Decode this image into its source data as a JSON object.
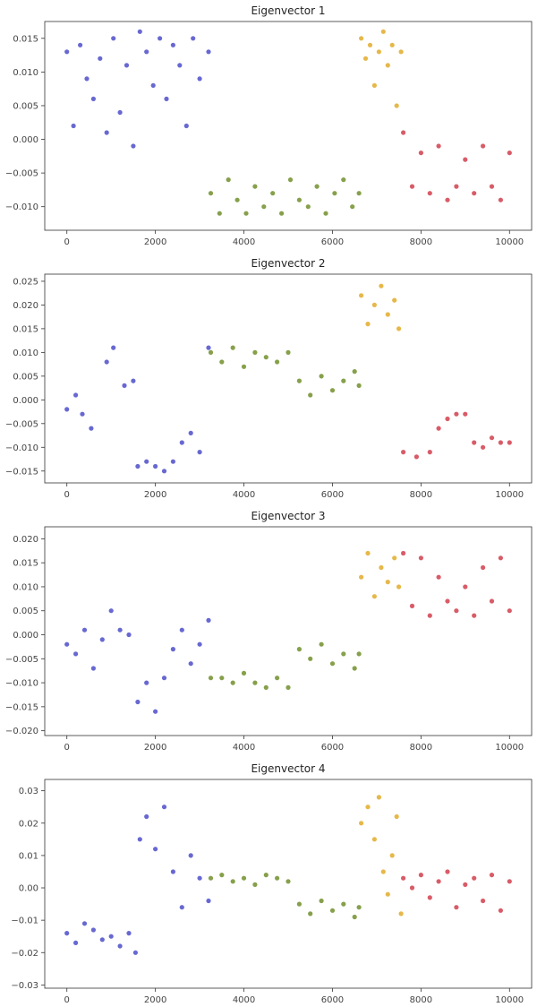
{
  "colors": {
    "cluster_1": "#6868d2",
    "cluster_2": "#86a04b",
    "cluster_3": "#e6b84a",
    "cluster_4": "#d85c68"
  },
  "chart_data": [
    {
      "type": "scatter",
      "title": "Eigenvector 1",
      "xlim": [
        -500,
        10500
      ],
      "ylim": [
        -0.0135,
        0.0175
      ],
      "xticks": [
        0,
        2000,
        4000,
        6000,
        8000,
        10000
      ],
      "xtick_labels": [
        "0",
        "2000",
        "4000",
        "6000",
        "8000",
        "10000"
      ],
      "yticks": [
        -0.01,
        -0.005,
        0.0,
        0.005,
        0.01,
        0.015
      ],
      "ytick_labels": [
        "−0.010",
        "−0.005",
        "0.000",
        "0.005",
        "0.010",
        "0.015"
      ],
      "series": [
        {
          "color_key": "cluster_1",
          "x": [
            0,
            150,
            300,
            450,
            600,
            750,
            900,
            1050,
            1200,
            1350,
            1500,
            1650,
            1800,
            1950,
            2100,
            2250,
            2400,
            2550,
            2700,
            2850,
            3000,
            3200
          ],
          "y": [
            0.013,
            0.002,
            0.014,
            0.009,
            0.006,
            0.012,
            0.001,
            0.015,
            0.004,
            0.011,
            -0.001,
            0.016,
            0.013,
            0.008,
            0.015,
            0.006,
            0.014,
            0.011,
            0.002,
            0.015,
            0.009,
            0.013
          ]
        },
        {
          "color_key": "cluster_2",
          "x": [
            3250,
            3450,
            3650,
            3850,
            4050,
            4250,
            4450,
            4650,
            4850,
            5050,
            5250,
            5450,
            5650,
            5850,
            6050,
            6250,
            6450,
            6600
          ],
          "y": [
            -0.008,
            -0.011,
            -0.006,
            -0.009,
            -0.011,
            -0.007,
            -0.01,
            -0.008,
            -0.011,
            -0.006,
            -0.009,
            -0.01,
            -0.007,
            -0.011,
            -0.008,
            -0.006,
            -0.01,
            -0.008
          ]
        },
        {
          "color_key": "cluster_3",
          "x": [
            6650,
            6750,
            6850,
            6950,
            7050,
            7150,
            7250,
            7350,
            7450,
            7550
          ],
          "y": [
            0.015,
            0.012,
            0.014,
            0.008,
            0.013,
            0.016,
            0.011,
            0.014,
            0.005,
            0.013
          ]
        },
        {
          "color_key": "cluster_4",
          "x": [
            7600,
            7800,
            8000,
            8200,
            8400,
            8600,
            8800,
            9000,
            9200,
            9400,
            9600,
            9800,
            10000
          ],
          "y": [
            0.001,
            -0.007,
            -0.002,
            -0.008,
            -0.001,
            -0.009,
            -0.007,
            -0.003,
            -0.008,
            -0.001,
            -0.007,
            -0.009,
            -0.002
          ]
        }
      ]
    },
    {
      "type": "scatter",
      "title": "Eigenvector 2",
      "xlim": [
        -500,
        10500
      ],
      "ylim": [
        -0.0175,
        0.0265
      ],
      "xticks": [
        0,
        2000,
        4000,
        6000,
        8000,
        10000
      ],
      "xtick_labels": [
        "0",
        "2000",
        "4000",
        "6000",
        "8000",
        "10000"
      ],
      "yticks": [
        -0.015,
        -0.01,
        -0.005,
        0.0,
        0.005,
        0.01,
        0.015,
        0.02,
        0.025
      ],
      "ytick_labels": [
        "−0.015",
        "−0.010",
        "−0.005",
        "0.000",
        "0.005",
        "0.010",
        "0.015",
        "0.020",
        "0.025"
      ],
      "series": [
        {
          "color_key": "cluster_1",
          "x": [
            0,
            200,
            350,
            550,
            900,
            1050,
            1300,
            1500,
            1600,
            1800,
            2000,
            2200,
            2400,
            2600,
            2800,
            3000,
            3200
          ],
          "y": [
            -0.002,
            0.001,
            -0.003,
            -0.006,
            0.008,
            0.011,
            0.003,
            0.004,
            -0.014,
            -0.013,
            -0.014,
            -0.015,
            -0.013,
            -0.009,
            -0.007,
            -0.011,
            0.011
          ]
        },
        {
          "color_key": "cluster_2",
          "x": [
            3250,
            3500,
            3750,
            4000,
            4250,
            4500,
            4750,
            5000,
            5250,
            5500,
            5750,
            6000,
            6250,
            6500,
            6600
          ],
          "y": [
            0.01,
            0.008,
            0.011,
            0.007,
            0.01,
            0.009,
            0.008,
            0.01,
            0.004,
            0.001,
            0.005,
            0.002,
            0.004,
            0.006,
            0.003
          ]
        },
        {
          "color_key": "cluster_3",
          "x": [
            6650,
            6800,
            6950,
            7100,
            7250,
            7400,
            7500
          ],
          "y": [
            0.022,
            0.016,
            0.02,
            0.024,
            0.018,
            0.021,
            0.015
          ]
        },
        {
          "color_key": "cluster_4",
          "x": [
            7600,
            7900,
            8200,
            8400,
            8600,
            8800,
            9000,
            9200,
            9400,
            9600,
            9800,
            10000
          ],
          "y": [
            -0.011,
            -0.012,
            -0.011,
            -0.006,
            -0.004,
            -0.003,
            -0.003,
            -0.009,
            -0.01,
            -0.008,
            -0.009,
            -0.009
          ]
        }
      ]
    },
    {
      "type": "scatter",
      "title": "Eigenvector 3",
      "xlim": [
        -500,
        10500
      ],
      "ylim": [
        -0.021,
        0.0225
      ],
      "xticks": [
        0,
        2000,
        4000,
        6000,
        8000,
        10000
      ],
      "xtick_labels": [
        "0",
        "2000",
        "4000",
        "6000",
        "8000",
        "10000"
      ],
      "yticks": [
        -0.02,
        -0.015,
        -0.01,
        -0.005,
        0.0,
        0.005,
        0.01,
        0.015,
        0.02
      ],
      "ytick_labels": [
        "−0.020",
        "−0.015",
        "−0.010",
        "−0.005",
        "0.000",
        "0.005",
        "0.010",
        "0.015",
        "0.020"
      ],
      "series": [
        {
          "color_key": "cluster_1",
          "x": [
            0,
            200,
            400,
            600,
            800,
            1000,
            1200,
            1400,
            1600,
            1800,
            2000,
            2200,
            2400,
            2600,
            2800,
            3000,
            3200
          ],
          "y": [
            -0.002,
            -0.004,
            0.001,
            -0.007,
            -0.001,
            0.005,
            0.001,
            0.0,
            -0.014,
            -0.01,
            -0.016,
            -0.009,
            -0.003,
            0.001,
            -0.006,
            -0.002,
            0.003
          ]
        },
        {
          "color_key": "cluster_2",
          "x": [
            3250,
            3500,
            3750,
            4000,
            4250,
            4500,
            4750,
            5000,
            5250,
            5500,
            5750,
            6000,
            6250,
            6500,
            6600
          ],
          "y": [
            -0.009,
            -0.009,
            -0.01,
            -0.008,
            -0.01,
            -0.011,
            -0.009,
            -0.011,
            -0.003,
            -0.005,
            -0.002,
            -0.006,
            -0.004,
            -0.007,
            -0.004
          ]
        },
        {
          "color_key": "cluster_3",
          "x": [
            6650,
            6800,
            6950,
            7100,
            7250,
            7400,
            7500
          ],
          "y": [
            0.012,
            0.017,
            0.008,
            0.014,
            0.011,
            0.016,
            0.01
          ]
        },
        {
          "color_key": "cluster_4",
          "x": [
            7600,
            7800,
            8000,
            8200,
            8400,
            8600,
            8800,
            9000,
            9200,
            9400,
            9600,
            9800,
            10000
          ],
          "y": [
            0.017,
            0.006,
            0.016,
            0.004,
            0.012,
            0.007,
            0.005,
            0.01,
            0.004,
            0.014,
            0.007,
            0.016,
            0.005
          ]
        }
      ]
    },
    {
      "type": "scatter",
      "title": "Eigenvector 4",
      "xlim": [
        -500,
        10500
      ],
      "ylim": [
        -0.031,
        0.0335
      ],
      "xticks": [
        0,
        2000,
        4000,
        6000,
        8000,
        10000
      ],
      "xtick_labels": [
        "0",
        "2000",
        "4000",
        "6000",
        "8000",
        "10000"
      ],
      "yticks": [
        -0.03,
        -0.02,
        -0.01,
        0.0,
        0.01,
        0.02,
        0.03
      ],
      "ytick_labels": [
        "−0.03",
        "−0.02",
        "−0.01",
        "0.00",
        "0.01",
        "0.02",
        "0.03"
      ],
      "series": [
        {
          "color_key": "cluster_1",
          "x": [
            0,
            200,
            400,
            600,
            800,
            1000,
            1200,
            1400,
            1550,
            1650,
            1800,
            2000,
            2200,
            2400,
            2600,
            2800,
            3000,
            3200
          ],
          "y": [
            -0.014,
            -0.017,
            -0.011,
            -0.013,
            -0.016,
            -0.015,
            -0.018,
            -0.014,
            -0.02,
            0.015,
            0.022,
            0.012,
            0.025,
            0.005,
            -0.006,
            0.01,
            0.003,
            -0.004
          ]
        },
        {
          "color_key": "cluster_2",
          "x": [
            3250,
            3500,
            3750,
            4000,
            4250,
            4500,
            4750,
            5000,
            5250,
            5500,
            5750,
            6000,
            6250,
            6500,
            6600
          ],
          "y": [
            0.003,
            0.004,
            0.002,
            0.003,
            0.001,
            0.004,
            0.003,
            0.002,
            -0.005,
            -0.008,
            -0.004,
            -0.007,
            -0.005,
            -0.009,
            -0.006
          ]
        },
        {
          "color_key": "cluster_3",
          "x": [
            6650,
            6800,
            6950,
            7050,
            7150,
            7250,
            7350,
            7450,
            7550
          ],
          "y": [
            0.02,
            0.025,
            0.015,
            0.028,
            0.005,
            -0.002,
            0.01,
            0.022,
            -0.008
          ]
        },
        {
          "color_key": "cluster_4",
          "x": [
            7600,
            7800,
            8000,
            8200,
            8400,
            8600,
            8800,
            9000,
            9200,
            9400,
            9600,
            9800,
            10000
          ],
          "y": [
            0.003,
            0.0,
            0.004,
            -0.003,
            0.002,
            0.005,
            -0.006,
            0.001,
            0.003,
            -0.004,
            0.004,
            -0.007,
            0.002
          ]
        }
      ]
    }
  ]
}
